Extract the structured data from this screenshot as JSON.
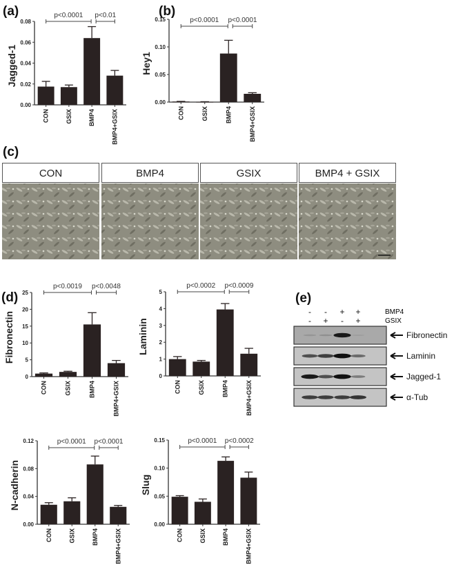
{
  "panel_labels": {
    "a": "(a)",
    "b": "(b)",
    "c": "(c)",
    "d": "(d)",
    "e": "(e)"
  },
  "chart_data": [
    {
      "id": "a",
      "type": "bar",
      "ylabel": "Jagged-1",
      "categories": [
        "CON",
        "GSIX",
        "BMP4",
        "BMP4+GSIX"
      ],
      "values": [
        0.0175,
        0.017,
        0.064,
        0.028
      ],
      "errors": [
        0.005,
        0.002,
        0.011,
        0.005
      ],
      "ylim": [
        0,
        0.08
      ],
      "yticks": [
        "0.00",
        "0.02",
        "0.04",
        "0.06",
        "0.08"
      ],
      "pvalues": [
        "p<0.0001",
        "p<0.01"
      ]
    },
    {
      "id": "b",
      "type": "bar",
      "ylabel": "Hey1",
      "categories": [
        "CON",
        "GSIX",
        "BMP4",
        "BMP4+GSIX"
      ],
      "values": [
        0.001,
        0.0005,
        0.088,
        0.015
      ],
      "errors": [
        0.0003,
        0.0002,
        0.024,
        0.002
      ],
      "ylim": [
        0,
        0.15
      ],
      "yticks": [
        "0.00",
        "0.05",
        "0.10",
        "0.15"
      ],
      "pvalues": [
        "p<0.0001",
        "p<0.0001"
      ]
    },
    {
      "id": "d1",
      "type": "bar",
      "ylabel": "Fibronectin",
      "categories": [
        "CON",
        "GSIX",
        "BMP4",
        "BMP4+GSIX"
      ],
      "values": [
        0.9,
        1.4,
        15.5,
        4.0
      ],
      "errors": [
        0.2,
        0.2,
        3.5,
        0.8
      ],
      "ylim": [
        0,
        25
      ],
      "yticks": [
        "0",
        "5",
        "10",
        "15",
        "20",
        "25"
      ],
      "pvalues": [
        "p<0.0019",
        "p<0.0048"
      ]
    },
    {
      "id": "d2",
      "type": "bar",
      "ylabel": "Laminin",
      "categories": [
        "CON",
        "GSIX",
        "BMP4",
        "BMP4+GSIX"
      ],
      "values": [
        1.0,
        0.85,
        3.95,
        1.32
      ],
      "errors": [
        0.15,
        0.07,
        0.35,
        0.32
      ],
      "ylim": [
        0,
        5
      ],
      "yticks": [
        "0",
        "1",
        "2",
        "3",
        "4",
        "5"
      ],
      "pvalues": [
        "p<0.0002",
        "p<0.0009"
      ]
    },
    {
      "id": "d3",
      "type": "bar",
      "ylabel": "N-cadherin",
      "categories": [
        "CON",
        "GSIX",
        "BMP4",
        "BMP4+GSIX"
      ],
      "values": [
        0.028,
        0.033,
        0.086,
        0.025
      ],
      "errors": [
        0.003,
        0.005,
        0.012,
        0.002
      ],
      "ylim": [
        0,
        0.12
      ],
      "yticks": [
        "0.00",
        "0.04",
        "0.08",
        "0.12"
      ],
      "pvalues": [
        "p<0.0001",
        "p<0.0001"
      ]
    },
    {
      "id": "d4",
      "type": "bar",
      "ylabel": "Slug",
      "categories": [
        "CON",
        "GSIX",
        "BMP4",
        "BMP4+GSIX"
      ],
      "values": [
        0.049,
        0.04,
        0.113,
        0.083
      ],
      "errors": [
        0.002,
        0.005,
        0.007,
        0.01
      ],
      "ylim": [
        0,
        0.15
      ],
      "yticks": [
        "0.00",
        "0.05",
        "0.10",
        "0.15"
      ],
      "pvalues": [
        "p<0.0001",
        "p<0.0002"
      ]
    }
  ],
  "micrographs": {
    "headers": [
      "CON",
      "BMP4",
      "GSIX",
      "BMP4 + GSIX"
    ]
  },
  "western_blot": {
    "treatments": [
      {
        "label": "BMP4",
        "signs": [
          "-",
          "-",
          "+",
          "+"
        ]
      },
      {
        "label": "GSIX",
        "signs": [
          "-",
          "+",
          "-",
          "+"
        ]
      }
    ],
    "rows": [
      {
        "label": "Fibronectin",
        "intensity": [
          0.08,
          0.12,
          0.9,
          0.02
        ]
      },
      {
        "label": "Laminin",
        "intensity": [
          0.6,
          0.7,
          0.95,
          0.45
        ]
      },
      {
        "label": "Jagged-1",
        "intensity": [
          0.9,
          0.6,
          0.95,
          0.35
        ]
      },
      {
        "label": "α-Tub",
        "intensity": [
          0.7,
          0.7,
          0.7,
          0.75
        ]
      }
    ]
  },
  "colors": {
    "bar": "#2a2222",
    "axis": "#333333"
  }
}
